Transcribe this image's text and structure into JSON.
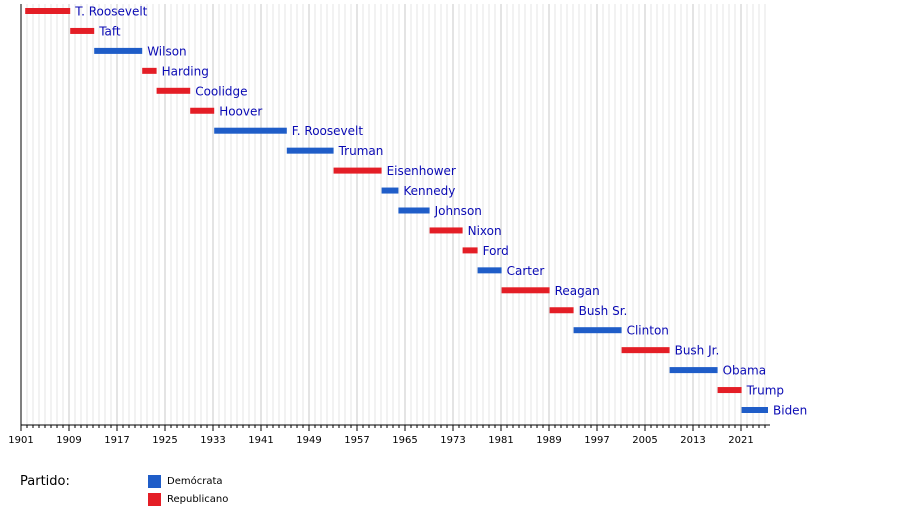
{
  "chart_data": {
    "type": "timeline",
    "title": "",
    "xlabel": "",
    "ylabel": "",
    "xlim": [
      1901,
      2025
    ],
    "x_ticks": [
      1901,
      1909,
      1917,
      1925,
      1933,
      1941,
      1949,
      1957,
      1965,
      1973,
      1981,
      1989,
      1997,
      2005,
      2013,
      2021
    ],
    "grid": true,
    "legend_title": "Partido:",
    "legend_position": "bottom-left",
    "parties": [
      {
        "name": "Demócrata",
        "color": "#1f5dc8"
      },
      {
        "name": "Republicano",
        "color": "#e41e26"
      }
    ],
    "bars": [
      {
        "label": "T. Roosevelt",
        "start": 1901.7,
        "end": 1909.2,
        "party": "Republicano"
      },
      {
        "label": "Taft",
        "start": 1909.2,
        "end": 1913.2,
        "party": "Republicano"
      },
      {
        "label": "Wilson",
        "start": 1913.2,
        "end": 1921.2,
        "party": "Demócrata"
      },
      {
        "label": "Harding",
        "start": 1921.2,
        "end": 1923.6,
        "party": "Republicano"
      },
      {
        "label": "Coolidge",
        "start": 1923.6,
        "end": 1929.2,
        "party": "Republicano"
      },
      {
        "label": "Hoover",
        "start": 1929.2,
        "end": 1933.2,
        "party": "Republicano"
      },
      {
        "label": "F. Roosevelt",
        "start": 1933.2,
        "end": 1945.3,
        "party": "Demócrata"
      },
      {
        "label": "Truman",
        "start": 1945.3,
        "end": 1953.1,
        "party": "Demócrata"
      },
      {
        "label": "Eisenhower",
        "start": 1953.1,
        "end": 1961.1,
        "party": "Republicano"
      },
      {
        "label": "Kennedy",
        "start": 1961.1,
        "end": 1963.9,
        "party": "Demócrata"
      },
      {
        "label": "Johnson",
        "start": 1963.9,
        "end": 1969.1,
        "party": "Demócrata"
      },
      {
        "label": "Nixon",
        "start": 1969.1,
        "end": 1974.6,
        "party": "Republicano"
      },
      {
        "label": "Ford",
        "start": 1974.6,
        "end": 1977.1,
        "party": "Republicano"
      },
      {
        "label": "Carter",
        "start": 1977.1,
        "end": 1981.1,
        "party": "Demócrata"
      },
      {
        "label": "Reagan",
        "start": 1981.1,
        "end": 1989.1,
        "party": "Republicano"
      },
      {
        "label": "Bush Sr.",
        "start": 1989.1,
        "end": 1993.1,
        "party": "Republicano"
      },
      {
        "label": "Clinton",
        "start": 1993.1,
        "end": 2001.1,
        "party": "Demócrata"
      },
      {
        "label": "Bush Jr.",
        "start": 2001.1,
        "end": 2009.1,
        "party": "Republicano"
      },
      {
        "label": "Obama",
        "start": 2009.1,
        "end": 2017.1,
        "party": "Demócrata"
      },
      {
        "label": "Trump",
        "start": 2017.1,
        "end": 2021.1,
        "party": "Republicano"
      },
      {
        "label": "Biden",
        "start": 2021.1,
        "end": 2025.5,
        "party": "Demócrata"
      }
    ]
  }
}
